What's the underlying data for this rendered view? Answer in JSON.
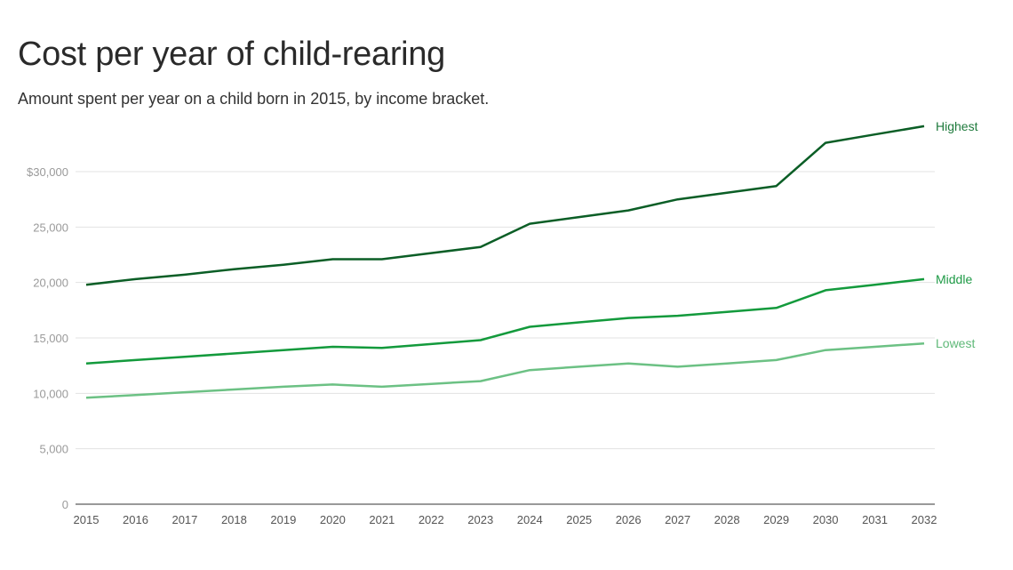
{
  "chart_data": {
    "type": "line",
    "title": "Cost per year of child-rearing",
    "subtitle": "Amount spent per year on a child born in 2015, by income bracket.",
    "xlabel": "",
    "ylabel": "",
    "ylim": [
      0,
      35000
    ],
    "grid": true,
    "legend": "end-of-line labels (right)",
    "y_ticks": [
      {
        "value": 0,
        "label": "0"
      },
      {
        "value": 5000,
        "label": "5,000"
      },
      {
        "value": 10000,
        "label": "10,000"
      },
      {
        "value": 15000,
        "label": "15,000"
      },
      {
        "value": 20000,
        "label": "20,000"
      },
      {
        "value": 25000,
        "label": "25,000"
      },
      {
        "value": 30000,
        "label": "$30,000"
      }
    ],
    "x": [
      "2015",
      "2016",
      "2017",
      "2018",
      "2019",
      "2020",
      "2021",
      "2022",
      "2023",
      "2024",
      "2025",
      "2026",
      "2027",
      "2028",
      "2029",
      "2030",
      "2031",
      "2032"
    ],
    "series": [
      {
        "name": "Highest",
        "color": "#0b5e26",
        "label_color": "#1e7a3c",
        "values": [
          19800,
          20300,
          20700,
          21200,
          21600,
          22100,
          22100,
          22650,
          23200,
          25300,
          25900,
          26500,
          27500,
          28100,
          28700,
          32600,
          33350,
          34100
        ]
      },
      {
        "name": "Middle",
        "color": "#139a3c",
        "label_color": "#1e9a46",
        "values": [
          12700,
          13000,
          13300,
          13600,
          13900,
          14200,
          14100,
          14450,
          14800,
          16000,
          16400,
          16800,
          17000,
          17350,
          17700,
          19300,
          19800,
          20300
        ]
      },
      {
        "name": "Lowest",
        "color": "#6cc184",
        "label_color": "#5fb978",
        "values": [
          9600,
          9850,
          10100,
          10350,
          10600,
          10800,
          10600,
          10850,
          11100,
          12100,
          12400,
          12700,
          12400,
          12700,
          13000,
          13900,
          14200,
          14500
        ]
      }
    ]
  }
}
